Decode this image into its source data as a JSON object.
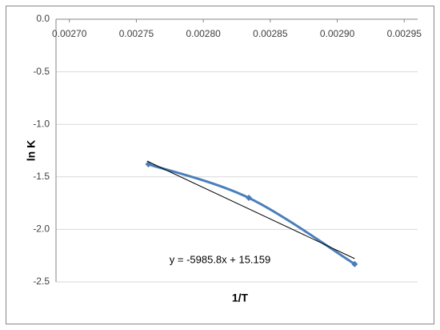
{
  "chart_data": {
    "type": "line",
    "x_label": "1/T",
    "y_label": "ln K",
    "annotation": "y = -5985.8x + 15.159",
    "xlim": [
      0.00269,
      0.00296
    ],
    "ylim": [
      -2.5,
      0
    ],
    "xticks": [
      {
        "value": 0.0027,
        "label": "0.00270"
      },
      {
        "value": 0.00275,
        "label": "0.00275"
      },
      {
        "value": 0.0028,
        "label": "0.00280"
      },
      {
        "value": 0.00285,
        "label": "0.00285"
      },
      {
        "value": 0.0029,
        "label": "0.00290"
      },
      {
        "value": 0.00295,
        "label": "0.00295"
      }
    ],
    "yticks": [
      {
        "value": 0,
        "label": "0.0"
      },
      -0.5,
      {
        "value": -1,
        "label": "-1.0"
      },
      -1.5,
      {
        "value": -2,
        "label": "-2.0"
      },
      -2.5
    ],
    "grid": true,
    "smooth": true,
    "series": [
      {
        "color": "#4a7ebb",
        "x": [
          0.002759,
          0.002834,
          0.002913
        ],
        "values": [
          -1.38,
          -1.7,
          -2.33
        ]
      }
    ],
    "trendline": {
      "color": "#000000",
      "x": [
        0.002758,
        0.002913
      ],
      "values": [
        -1.35,
        -2.278
      ]
    }
  }
}
